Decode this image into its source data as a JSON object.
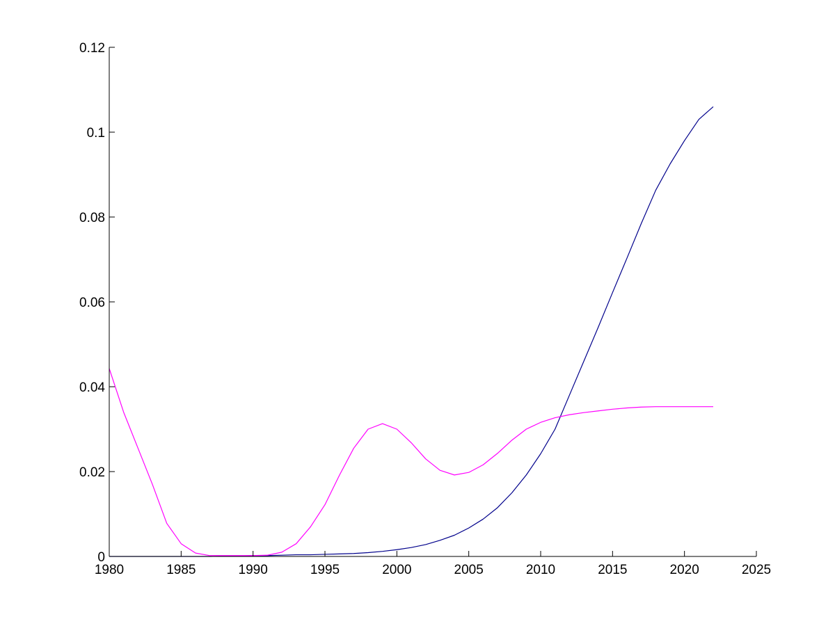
{
  "chart_data": {
    "type": "line",
    "title": "",
    "xlabel": "",
    "ylabel": "",
    "xlim": [
      1980,
      2025
    ],
    "ylim": [
      0,
      0.12
    ],
    "xticks": [
      1980,
      1985,
      1990,
      1995,
      2000,
      2005,
      2010,
      2015,
      2020,
      2025
    ],
    "xtick_labels": [
      "1980",
      "1985",
      "1990",
      "1995",
      "2000",
      "2005",
      "2010",
      "2015",
      "2020",
      "2025"
    ],
    "yticks": [
      0,
      0.02,
      0.04,
      0.06,
      0.08,
      0.1,
      0.12
    ],
    "ytick_labels": [
      "0",
      "0.02",
      "0.04",
      "0.06",
      "0.08",
      "0.1",
      "0.12"
    ],
    "grid": false,
    "legend": "none",
    "series": [
      {
        "color": "#00008b",
        "x": [
          1980,
          1981,
          1982,
          1983,
          1984,
          1985,
          1986,
          1987,
          1988,
          1989,
          1990,
          1991,
          1992,
          1993,
          1994,
          1995,
          1996,
          1997,
          1998,
          1999,
          2000,
          2001,
          2002,
          2003,
          2004,
          2005,
          2006,
          2007,
          2008,
          2009,
          2010,
          2011,
          2012,
          2013,
          2014,
          2015,
          2016,
          2017,
          2018,
          2019,
          2020,
          2021,
          2022
        ],
        "y": [
          0,
          0,
          0,
          0,
          0,
          0,
          0,
          0,
          0.0001,
          0.0001,
          0.0002,
          0.0002,
          0.0003,
          0.0004,
          0.0004,
          0.0005,
          0.0006,
          0.0007,
          0.0009,
          0.0012,
          0.0016,
          0.0021,
          0.0028,
          0.0038,
          0.005,
          0.0067,
          0.0088,
          0.0115,
          0.015,
          0.0192,
          0.0242,
          0.03,
          0.038,
          0.046,
          0.054,
          0.0622,
          0.0703,
          0.0785,
          0.0863,
          0.0925,
          0.098,
          0.103,
          0.106
        ]
      },
      {
        "color": "#ff00ff",
        "x": [
          1980,
          1981,
          1982,
          1983,
          1984,
          1985,
          1986,
          1987,
          1988,
          1989,
          1990,
          1991,
          1992,
          1993,
          1994,
          1995,
          1996,
          1997,
          1998,
          1999,
          2000,
          2001,
          2002,
          2003,
          2004,
          2005,
          2006,
          2007,
          2008,
          2009,
          2010,
          2011,
          2012,
          2013,
          2014,
          2015,
          2016,
          2017,
          2018,
          2019,
          2020,
          2021,
          2022
        ],
        "y": [
          0.0443,
          0.034,
          0.0255,
          0.017,
          0.0078,
          0.003,
          0.0008,
          0.0002,
          0.0002,
          0.0002,
          0.0002,
          0.0003,
          0.001,
          0.003,
          0.007,
          0.0122,
          0.0191,
          0.0255,
          0.03,
          0.0313,
          0.03,
          0.0268,
          0.023,
          0.0203,
          0.0192,
          0.0198,
          0.0216,
          0.0243,
          0.0274,
          0.03,
          0.0316,
          0.0327,
          0.0334,
          0.0339,
          0.0343,
          0.0347,
          0.035,
          0.0352,
          0.0353,
          0.0353,
          0.0353,
          0.0353,
          0.0353
        ]
      }
    ]
  }
}
